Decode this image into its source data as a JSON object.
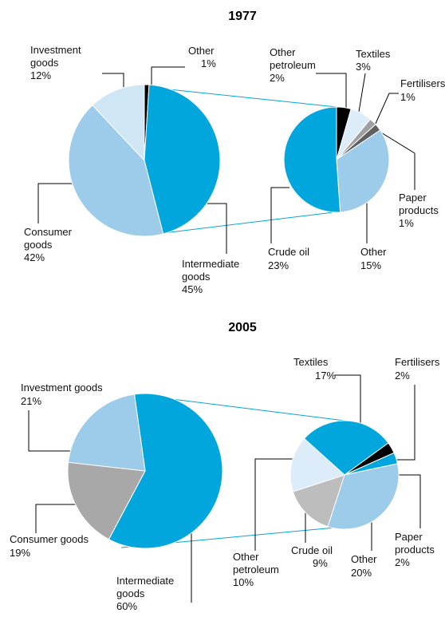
{
  "chart_data": [
    {
      "type": "pie",
      "title": "1977",
      "categories": [
        "Other",
        "Intermediate goods",
        "Consumer goods",
        "Investment goods"
      ],
      "values": [
        1,
        45,
        42,
        12
      ],
      "value_labels": [
        "1%",
        "45%",
        "42%",
        "12%"
      ],
      "colors": [
        "#000000",
        "#00a6dc",
        "#9dcbea",
        "#cfe6f5"
      ],
      "breakdown": {
        "categories": [
          "Other petroleum",
          "Textiles",
          "Fertilisers",
          "Paper products",
          "Other",
          "Crude oil"
        ],
        "values": [
          2,
          3,
          1,
          1,
          15,
          23
        ],
        "value_labels": [
          "2%",
          "3%",
          "1%",
          "1%",
          "15%",
          "23%"
        ],
        "colors": [
          "#000000",
          "#dcecf8",
          "#a0a0a0",
          "#606060",
          "#9dcbea",
          "#00a6dc"
        ]
      }
    },
    {
      "type": "pie",
      "title": "2005",
      "categories": [
        "Intermediate goods",
        "Consumer goods",
        "Investment goods"
      ],
      "values": [
        60,
        19,
        21
      ],
      "value_labels": [
        "60%",
        "19%",
        "21%"
      ],
      "colors": [
        "#00a6dc",
        "#a8a8a8",
        "#9dcbea"
      ],
      "breakdown": {
        "categories": [
          "Textiles",
          "Fertilisers",
          "Paper products",
          "Other",
          "Crude oil",
          "Other petroleum"
        ],
        "values": [
          17,
          2,
          2,
          20,
          9,
          10
        ],
        "value_labels": [
          "17%",
          "2%",
          "2%",
          "20%",
          "9%",
          "10%"
        ],
        "colors": [
          "#00a6dc",
          "#000000",
          "#00a6dc",
          "#9dcbea",
          "#bdbdbd",
          "#dcecf8"
        ]
      }
    }
  ]
}
